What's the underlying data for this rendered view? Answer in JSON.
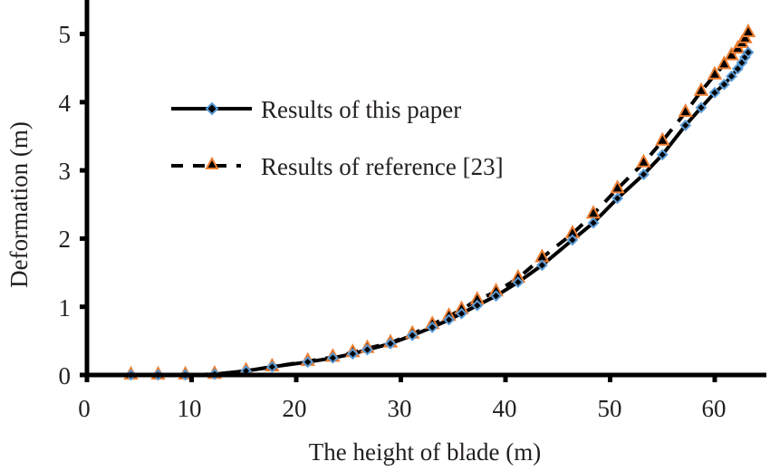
{
  "chart_data": {
    "type": "line",
    "title": "",
    "xlabel": "The height of blade (m)",
    "ylabel": "Deformation (m)",
    "xlim": [
      0,
      65
    ],
    "ylim": [
      0,
      5.5
    ],
    "xticks": [
      0,
      10,
      20,
      30,
      40,
      50,
      60
    ],
    "yticks": [
      0,
      1,
      2,
      3,
      4,
      5
    ],
    "grid": false,
    "legend_position": "upper-left-inside",
    "x": [
      4.2,
      6.8,
      9.4,
      12.2,
      15.2,
      17.7,
      21.1,
      23.5,
      25.4,
      26.8,
      29.0,
      31.1,
      33.0,
      34.6,
      35.8,
      37.3,
      39.1,
      41.2,
      43.5,
      46.4,
      48.4,
      50.7,
      53.2,
      55.0,
      57.2,
      58.7,
      60.0,
      60.9,
      61.6,
      62.2,
      62.6,
      62.9,
      63.2
    ],
    "series": [
      {
        "name": "Results of this paper",
        "line_style": "solid",
        "marker": "diamond",
        "marker_edge_color": "#5B9BD5",
        "marker_fill_color": "#000000",
        "values": [
          0,
          0,
          0,
          0.01,
          0.06,
          0.12,
          0.19,
          0.25,
          0.31,
          0.37,
          0.46,
          0.58,
          0.7,
          0.81,
          0.9,
          1.02,
          1.16,
          1.36,
          1.61,
          1.98,
          2.23,
          2.59,
          2.94,
          3.23,
          3.66,
          3.92,
          4.14,
          4.26,
          4.38,
          4.49,
          4.58,
          4.66,
          4.73
        ]
      },
      {
        "name": "Results of reference [23]",
        "line_style": "dashed",
        "marker": "triangle",
        "marker_edge_color": "#ED7D31",
        "marker_fill_color": "#000000",
        "values": [
          0,
          0,
          0,
          0.01,
          0.06,
          0.12,
          0.2,
          0.26,
          0.33,
          0.39,
          0.47,
          0.6,
          0.74,
          0.86,
          0.96,
          1.1,
          1.22,
          1.42,
          1.72,
          2.07,
          2.36,
          2.73,
          3.11,
          3.43,
          3.85,
          4.16,
          4.4,
          4.55,
          4.68,
          4.78,
          4.86,
          4.93,
          5.02
        ]
      }
    ]
  },
  "axes": {
    "x_title": "The height of blade (m)",
    "y_title": "Deformation (m)",
    "x_tick_labels": [
      "0",
      "10",
      "20",
      "30",
      "40",
      "50",
      "60"
    ],
    "y_tick_labels": [
      "0",
      "1",
      "2",
      "3",
      "4",
      "5"
    ]
  },
  "legend": {
    "items": [
      {
        "label": "Results of this paper"
      },
      {
        "label": "Results of reference [23]"
      }
    ]
  }
}
